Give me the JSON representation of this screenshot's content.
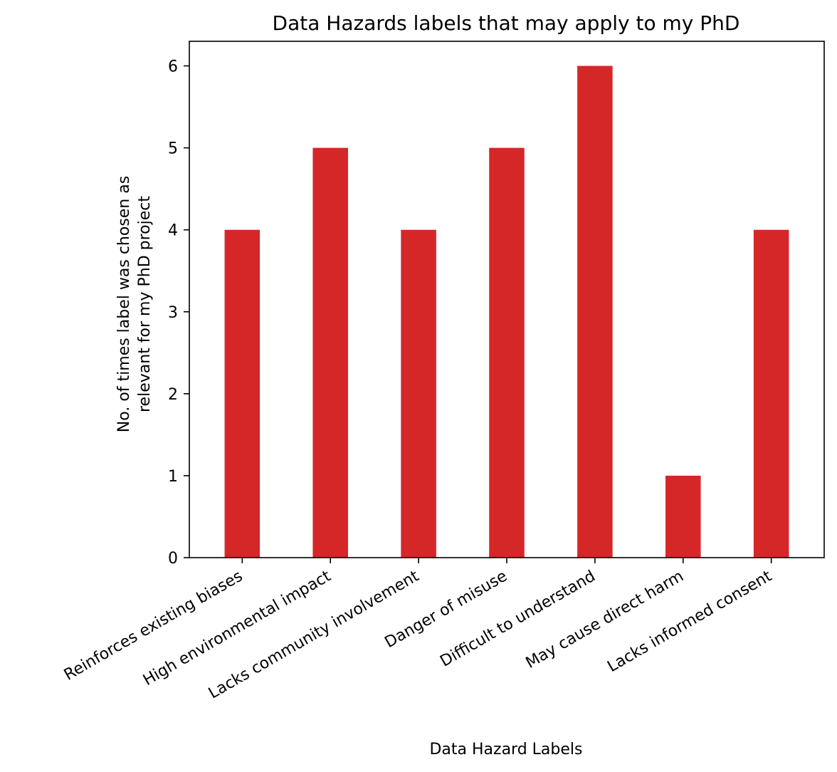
{
  "chart_data": {
    "type": "bar",
    "title": "Data Hazards labels that may apply to my PhD",
    "xlabel": "Data Hazard Labels",
    "ylabel_lines": [
      "No. of times label was chosen as",
      "relevant for my PhD project"
    ],
    "categories": [
      "Reinforces existing biases",
      "High environmental impact",
      "Lacks community involvement",
      "Danger of misuse",
      "Difficult to understand",
      "May cause direct harm",
      "Lacks informed consent"
    ],
    "values": [
      4,
      5,
      4,
      5,
      6,
      1,
      4
    ],
    "ylim": [
      0,
      6.3
    ],
    "yticks": [
      "0",
      "1",
      "2",
      "3",
      "4",
      "5",
      "6"
    ],
    "bar_color": "#d62728",
    "grid": false
  }
}
